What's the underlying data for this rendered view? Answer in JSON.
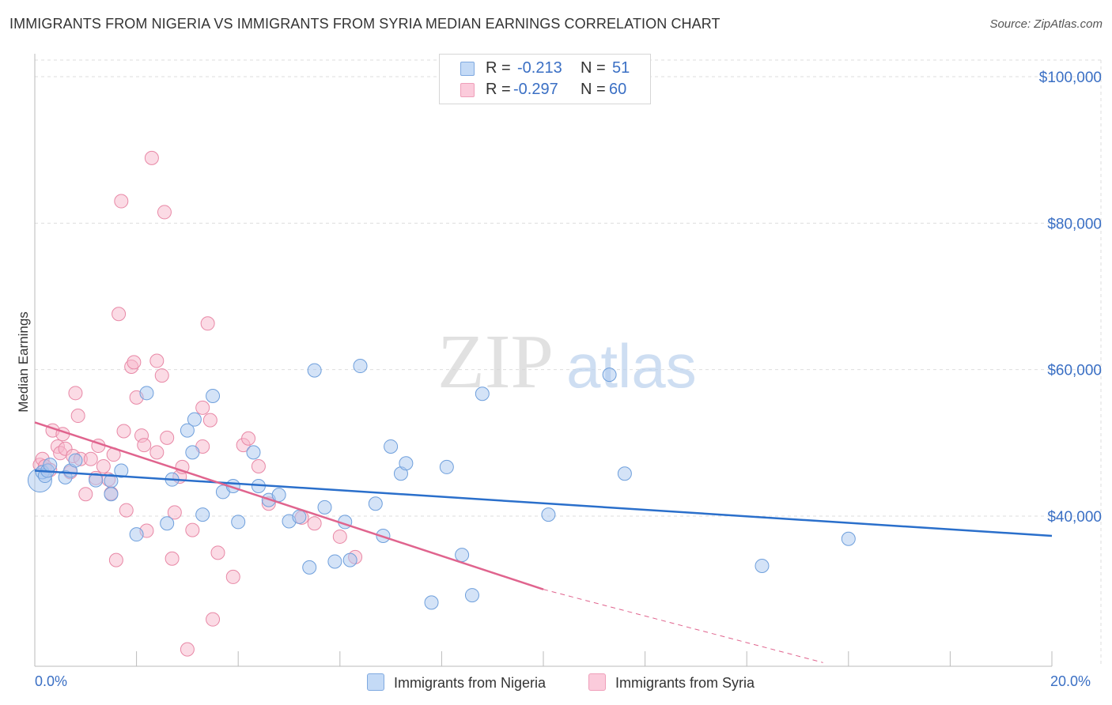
{
  "title": "IMMIGRANTS FROM NIGERIA VS IMMIGRANTS FROM SYRIA MEDIAN EARNINGS CORRELATION CHART",
  "source": "Source: ZipAtlas.com",
  "watermark": {
    "zip": "ZIP",
    "atlas": "atlas"
  },
  "colors": {
    "nigeria_fill": "#aac8f0",
    "nigeria_stroke": "#6e9fdc",
    "nigeria_line": "#2a6fcb",
    "syria_fill": "#f7b8cc",
    "syria_stroke": "#e888a6",
    "syria_line": "#e0648e",
    "axis_text": "#3a6fc4"
  },
  "legend": {
    "r_label": "R =",
    "n_label": "N =",
    "nigeria_r": "-0.213",
    "nigeria_n": "51",
    "syria_r": "-0.297",
    "syria_n": "60"
  },
  "chart_data": {
    "type": "scatter",
    "title": "IMMIGRANTS FROM NIGERIA VS IMMIGRANTS FROM SYRIA MEDIAN EARNINGS CORRELATION CHART",
    "xlabel": "",
    "ylabel": "Median Earnings",
    "xlim": [
      0,
      20
    ],
    "ylim": [
      20000,
      102000
    ],
    "x_tick_labels": [
      "0.0%",
      "20.0%"
    ],
    "y_ticks": [
      40000,
      60000,
      80000,
      100000
    ],
    "y_tick_labels": [
      "$40,000",
      "$60,000",
      "$80,000",
      "$100,000"
    ],
    "grid": true,
    "legend_position": "top-center",
    "series": [
      {
        "name": "Immigrants from Nigeria",
        "r": -0.213,
        "n": 51,
        "trend": {
          "x": [
            0,
            20
          ],
          "y": [
            46200,
            37300
          ]
        },
        "points": [
          [
            0.15,
            46000
          ],
          [
            0.2,
            45500
          ],
          [
            0.25,
            46200
          ],
          [
            0.3,
            47000
          ],
          [
            0.6,
            45300
          ],
          [
            0.7,
            46200
          ],
          [
            0.8,
            47600
          ],
          [
            1.2,
            44900
          ],
          [
            1.5,
            44800
          ],
          [
            1.5,
            43000
          ],
          [
            1.7,
            46200
          ],
          [
            2.0,
            37500
          ],
          [
            2.2,
            56800
          ],
          [
            2.6,
            39000
          ],
          [
            2.7,
            45000
          ],
          [
            3.0,
            51700
          ],
          [
            3.1,
            48700
          ],
          [
            3.14,
            53200
          ],
          [
            3.3,
            40200
          ],
          [
            3.5,
            56400
          ],
          [
            3.7,
            43300
          ],
          [
            3.9,
            44100
          ],
          [
            4.0,
            39200
          ],
          [
            4.3,
            48700
          ],
          [
            4.4,
            44100
          ],
          [
            4.6,
            42200
          ],
          [
            4.8,
            42900
          ],
          [
            5.0,
            39300
          ],
          [
            5.2,
            39900
          ],
          [
            5.4,
            33000
          ],
          [
            5.5,
            59900
          ],
          [
            5.7,
            41200
          ],
          [
            5.9,
            33800
          ],
          [
            6.1,
            39200
          ],
          [
            6.2,
            34000
          ],
          [
            6.4,
            60500
          ],
          [
            6.7,
            41700
          ],
          [
            6.85,
            37300
          ],
          [
            7.0,
            49500
          ],
          [
            7.2,
            45800
          ],
          [
            7.3,
            47200
          ],
          [
            7.8,
            28200
          ],
          [
            8.1,
            46700
          ],
          [
            8.4,
            34700
          ],
          [
            8.6,
            29200
          ],
          [
            8.8,
            56700
          ],
          [
            10.1,
            40200
          ],
          [
            11.3,
            59300
          ],
          [
            11.6,
            45800
          ],
          [
            14.3,
            33200
          ],
          [
            16.0,
            36900
          ]
        ]
      },
      {
        "name": "Immigrants from Syria",
        "r": -0.297,
        "n": 60,
        "trend": {
          "x": [
            0,
            10
          ],
          "y": [
            52800,
            30000
          ]
        },
        "trend_dashed": {
          "x": [
            10,
            15.5
          ],
          "y": [
            30000,
            20000
          ]
        },
        "points": [
          [
            0.1,
            47000
          ],
          [
            0.15,
            47800
          ],
          [
            0.2,
            46800
          ],
          [
            0.3,
            46300
          ],
          [
            0.35,
            51700
          ],
          [
            0.45,
            49500
          ],
          [
            0.5,
            48600
          ],
          [
            0.55,
            51200
          ],
          [
            0.6,
            49200
          ],
          [
            0.7,
            46000
          ],
          [
            0.75,
            48200
          ],
          [
            0.8,
            56800
          ],
          [
            0.85,
            53700
          ],
          [
            0.9,
            47800
          ],
          [
            1.0,
            43000
          ],
          [
            1.1,
            47800
          ],
          [
            1.2,
            45200
          ],
          [
            1.25,
            49600
          ],
          [
            1.35,
            46800
          ],
          [
            1.45,
            45000
          ],
          [
            1.5,
            43100
          ],
          [
            1.55,
            48400
          ],
          [
            1.6,
            34000
          ],
          [
            1.65,
            67600
          ],
          [
            1.7,
            83000
          ],
          [
            1.75,
            51600
          ],
          [
            1.8,
            40800
          ],
          [
            1.9,
            60400
          ],
          [
            1.95,
            61000
          ],
          [
            2.0,
            56200
          ],
          [
            2.1,
            51000
          ],
          [
            2.15,
            49700
          ],
          [
            2.2,
            38000
          ],
          [
            2.3,
            88900
          ],
          [
            2.4,
            61200
          ],
          [
            2.5,
            59200
          ],
          [
            2.55,
            81500
          ],
          [
            2.6,
            50700
          ],
          [
            2.7,
            34200
          ],
          [
            2.75,
            40500
          ],
          [
            2.85,
            45400
          ],
          [
            2.9,
            46700
          ],
          [
            3.0,
            21800
          ],
          [
            3.1,
            38100
          ],
          [
            3.3,
            54800
          ],
          [
            3.4,
            66300
          ],
          [
            3.45,
            53100
          ],
          [
            3.5,
            25900
          ],
          [
            3.6,
            35000
          ],
          [
            3.9,
            31700
          ],
          [
            4.1,
            49700
          ],
          [
            4.2,
            50600
          ],
          [
            4.4,
            46800
          ],
          [
            4.6,
            41700
          ],
          [
            5.25,
            39800
          ],
          [
            5.5,
            39000
          ],
          [
            6.0,
            37200
          ],
          [
            6.3,
            34400
          ],
          [
            3.3,
            49500
          ],
          [
            2.4,
            48700
          ]
        ]
      }
    ]
  },
  "bottom_legend": {
    "nigeria": "Immigrants from Nigeria",
    "syria": "Immigrants from Syria"
  }
}
